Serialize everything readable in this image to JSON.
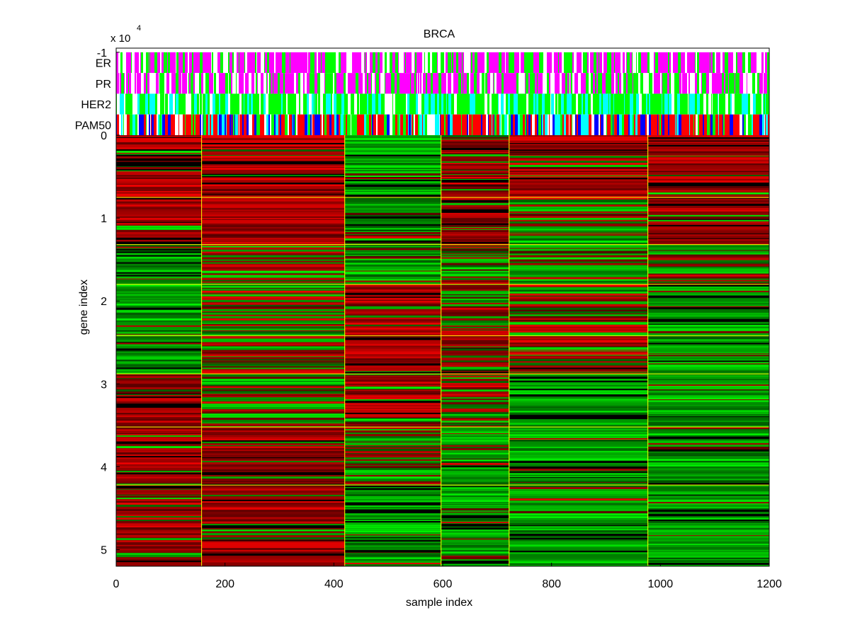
{
  "chart_data": {
    "type": "heatmap",
    "title": "BRCA",
    "xlabel": "sample index",
    "ylabel": "gene index",
    "exponent_label": "x 10",
    "exponent_power": "4",
    "xlim": [
      0,
      1200
    ],
    "ylim": [
      -1.05,
      5.2
    ],
    "x_ticks": [
      0,
      200,
      400,
      600,
      800,
      1000,
      1200
    ],
    "x_tick_labels": [
      "0",
      "200",
      "400",
      "600",
      "800",
      "1000",
      "1200"
    ],
    "y_ticks": [
      -1,
      0,
      1,
      2,
      3,
      4,
      5
    ],
    "y_tick_labels": [
      "-1",
      "0",
      "1",
      "2",
      "3",
      "4",
      "5"
    ],
    "annotation_tracks": [
      {
        "name": "ER",
        "y_range": [
          -1.0,
          -0.75
        ],
        "colors": [
          "#ff00ff",
          "#00ff00",
          "#ffffff"
        ]
      },
      {
        "name": "PR",
        "y_range": [
          -0.75,
          -0.5
        ],
        "colors": [
          "#ff00ff",
          "#00ff00",
          "#ffffff"
        ]
      },
      {
        "name": "HER2",
        "y_range": [
          -0.5,
          -0.25
        ],
        "colors": [
          "#00ff00",
          "#00ffff",
          "#ffffff"
        ]
      },
      {
        "name": "PAM50",
        "y_range": [
          -0.25,
          0.0
        ],
        "colors": [
          "#ff0000",
          "#0000ff",
          "#00ff00",
          "#00ffff",
          "#ffffff"
        ]
      }
    ],
    "sample_cluster_boundaries": [
      157,
      420,
      597,
      722,
      977
    ],
    "gene_cluster_boundaries": [
      0.75,
      1.32,
      1.8,
      2.42,
      2.88,
      3.52,
      4.22
    ],
    "heatmap_colors": {
      "high": "#ff0000",
      "low": "#00ff00",
      "mid": "#000000",
      "boundary": "#ffff00"
    },
    "block_pattern": [
      [
        "R",
        "R",
        "G",
        "R",
        "R",
        "R"
      ],
      [
        "R",
        "R",
        "G",
        "R",
        "M",
        "R"
      ],
      [
        "G",
        "M",
        "G",
        "M",
        "M",
        "M"
      ],
      [
        "G",
        "M",
        "R",
        "M",
        "M",
        "G"
      ],
      [
        "G",
        "M",
        "R",
        "R",
        "R",
        "G"
      ],
      [
        "R",
        "M",
        "R",
        "M",
        "G",
        "G"
      ],
      [
        "R",
        "R",
        "M",
        "G",
        "G",
        "G"
      ],
      [
        "R",
        "R",
        "G",
        "G",
        "G",
        "G"
      ]
    ]
  }
}
